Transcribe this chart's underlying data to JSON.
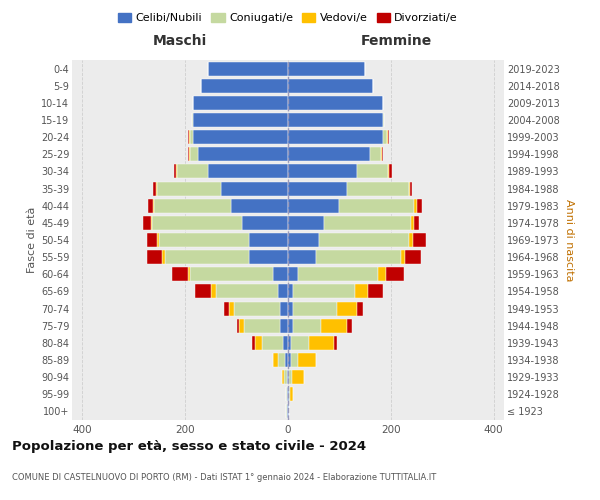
{
  "age_groups": [
    "100+",
    "95-99",
    "90-94",
    "85-89",
    "80-84",
    "75-79",
    "70-74",
    "65-69",
    "60-64",
    "55-59",
    "50-54",
    "45-49",
    "40-44",
    "35-39",
    "30-34",
    "25-29",
    "20-24",
    "15-19",
    "10-14",
    "5-9",
    "0-4"
  ],
  "birth_years": [
    "≤ 1923",
    "1924-1928",
    "1929-1933",
    "1934-1938",
    "1939-1943",
    "1944-1948",
    "1949-1953",
    "1954-1958",
    "1959-1963",
    "1964-1968",
    "1969-1973",
    "1974-1978",
    "1979-1983",
    "1984-1988",
    "1989-1993",
    "1994-1998",
    "1999-2003",
    "2004-2008",
    "2009-2013",
    "2014-2018",
    "2019-2023"
  ],
  "maschi": {
    "celibi": [
      2,
      2,
      2,
      5,
      10,
      15,
      15,
      20,
      30,
      75,
      75,
      90,
      110,
      130,
      155,
      175,
      185,
      185,
      185,
      170,
      155
    ],
    "coniugati": [
      1,
      2,
      5,
      15,
      40,
      70,
      90,
      120,
      160,
      165,
      175,
      175,
      150,
      125,
      60,
      15,
      5,
      2,
      0,
      0,
      0
    ],
    "vedovi": [
      0,
      0,
      5,
      10,
      15,
      10,
      10,
      10,
      5,
      5,
      5,
      2,
      2,
      2,
      2,
      2,
      2,
      0,
      0,
      0,
      0
    ],
    "divorziati": [
      0,
      0,
      0,
      0,
      5,
      5,
      10,
      30,
      30,
      30,
      20,
      15,
      10,
      5,
      5,
      2,
      2,
      0,
      0,
      0,
      0
    ]
  },
  "femmine": {
    "nubili": [
      1,
      2,
      2,
      5,
      5,
      10,
      10,
      10,
      20,
      55,
      60,
      70,
      100,
      115,
      135,
      160,
      185,
      185,
      185,
      165,
      150
    ],
    "coniugate": [
      1,
      2,
      5,
      15,
      35,
      55,
      85,
      120,
      155,
      165,
      175,
      170,
      145,
      120,
      60,
      20,
      8,
      2,
      0,
      0,
      0
    ],
    "vedove": [
      0,
      5,
      25,
      35,
      50,
      50,
      40,
      25,
      15,
      8,
      8,
      5,
      5,
      2,
      2,
      2,
      2,
      0,
      0,
      0,
      0
    ],
    "divorziate": [
      0,
      0,
      0,
      0,
      5,
      10,
      10,
      30,
      35,
      30,
      25,
      10,
      10,
      5,
      5,
      2,
      2,
      0,
      0,
      0,
      0
    ]
  },
  "colors": {
    "celibi": "#4472c4",
    "coniugati": "#c5d9a0",
    "vedovi": "#ffc000",
    "divorziati": "#c00000"
  },
  "title": "Popolazione per età, sesso e stato civile - 2024",
  "subtitle": "COMUNE DI CASTELNUOVO DI PORTO (RM) - Dati ISTAT 1° gennaio 2024 - Elaborazione TUTTITALIA.IT",
  "xlabel_left": "Maschi",
  "xlabel_right": "Femmine",
  "ylabel_left": "Fasce di età",
  "ylabel_right": "Anni di nascita",
  "xlim": 420,
  "legend_labels": [
    "Celibi/Nubili",
    "Coniugati/e",
    "Vedovi/e",
    "Divorziati/e"
  ],
  "bg_color": "#ffffff",
  "grid_color": "#cccccc"
}
